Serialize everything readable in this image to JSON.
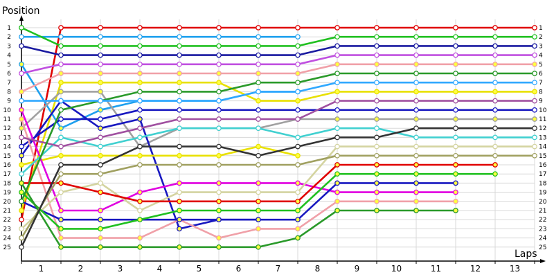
{
  "chart_data": {
    "type": "line",
    "ylabel": "Position",
    "xlabel": "Laps",
    "x_ticks": [
      "1",
      "2",
      "3",
      "4",
      "5",
      "6",
      "7",
      "8",
      "9",
      "10",
      "11",
      "12",
      "13"
    ],
    "y_ticks": [
      "1",
      "2",
      "3",
      "4",
      "5",
      "6",
      "7",
      "8",
      "9",
      "10",
      "11",
      "12",
      "13",
      "14",
      "15",
      "16",
      "17",
      "18",
      "19",
      "20",
      "21",
      "22",
      "23",
      "24",
      "25"
    ],
    "right_ticks": [
      "1",
      "2",
      "3",
      "4",
      "5",
      "6",
      "7",
      "8",
      "9",
      "10",
      "11",
      "12",
      "13",
      "14",
      "15",
      "16",
      "17",
      "18",
      "19",
      "20",
      "21",
      "22",
      "23",
      "24",
      "25"
    ],
    "ylim": [
      25,
      1
    ],
    "y_reversed": true,
    "x_positions": [
      0,
      1,
      2,
      3,
      4,
      5,
      6,
      7,
      8,
      9,
      10,
      11,
      12,
      13
    ],
    "grid": true,
    "series": [
      {
        "color": "#e00000",
        "dot": "#ffffff",
        "values": [
          22,
          1,
          1,
          1,
          1,
          1,
          1,
          1,
          1,
          1,
          1,
          1,
          1,
          1
        ]
      },
      {
        "color": "#1ea0ee",
        "dot": "#ffff40",
        "values": [
          5,
          12,
          10,
          9,
          9,
          9,
          8,
          8,
          null,
          null,
          null,
          null,
          null,
          null
        ]
      },
      {
        "color": "#f0a0a8",
        "dot": "#ffff40",
        "values": [
          8,
          6,
          6,
          6,
          6,
          6,
          6,
          6,
          5,
          5,
          5,
          5,
          5,
          5
        ]
      },
      {
        "color": "#e8e000",
        "dot": "#ffff40",
        "values": [
          21,
          7,
          7,
          7,
          7,
          7,
          9,
          9,
          8,
          8,
          8,
          8,
          8,
          8
        ]
      },
      {
        "color": "#a0a0a0",
        "dot": "#ffff40",
        "values": [
          12,
          8,
          8,
          14,
          12,
          12,
          12,
          11,
          11,
          11,
          11,
          11,
          11,
          11
        ]
      },
      {
        "color": "#1818c0",
        "dot": "#ffff40",
        "values": [
          15,
          9,
          12,
          11,
          23,
          22,
          22,
          null,
          null,
          null,
          null,
          null,
          null,
          null
        ]
      },
      {
        "color": "#1818c0",
        "dot": "#ffffff",
        "values": [
          14,
          11,
          11,
          10,
          10,
          10,
          10,
          10,
          10,
          10,
          10,
          10,
          10,
          10
        ]
      },
      {
        "color": "#1ea0ee",
        "dot": "#ffffff",
        "values": [
          2,
          2,
          2,
          2,
          2,
          2,
          2,
          2,
          null,
          null,
          null,
          null,
          null,
          null
        ]
      },
      {
        "color": "#1a1aa0",
        "dot": "#ffffff",
        "values": [
          3,
          4,
          4,
          4,
          4,
          4,
          4,
          4,
          3,
          3,
          3,
          3,
          3,
          3
        ]
      },
      {
        "color": "#e8e000",
        "dot": "#ffff40",
        "values": [
          16,
          15,
          15,
          15,
          15,
          15,
          14,
          15,
          null,
          null,
          null,
          null,
          null,
          null
        ]
      },
      {
        "color": "#e000e0",
        "dot": "#ffff40",
        "values": [
          10,
          21,
          21,
          19,
          18,
          18,
          18,
          18,
          19,
          19,
          19,
          19,
          null,
          null
        ]
      },
      {
        "color": "#f0a0a8",
        "dot": "#ffff40",
        "values": [
          11,
          24,
          24,
          24,
          22,
          24,
          23,
          23,
          20,
          20,
          20,
          20,
          null,
          null
        ]
      },
      {
        "color": "#d4d4a0",
        "dot": "#ffffff",
        "values": [
          23,
          19,
          18,
          21,
          19,
          19,
          19,
          19,
          14,
          14,
          14,
          14,
          14,
          14
        ]
      },
      {
        "color": "#e00000",
        "dot": "#ffff40",
        "values": [
          18,
          18,
          19,
          20,
          20,
          20,
          20,
          20,
          16,
          16,
          16,
          16,
          16,
          null
        ]
      },
      {
        "color": "#1818c0",
        "dot": "#ffff40",
        "values": [
          20,
          22,
          22,
          22,
          22,
          22,
          22,
          22,
          18,
          18,
          18,
          18,
          null,
          null
        ]
      },
      {
        "color": "#20c020",
        "dot": "#ffff40",
        "values": [
          19,
          23,
          23,
          22,
          21,
          21,
          21,
          21,
          17,
          17,
          17,
          17,
          17,
          null
        ]
      },
      {
        "color": "#20c020",
        "dot": "#ffffff",
        "values": [
          1,
          3,
          3,
          3,
          3,
          3,
          3,
          3,
          2,
          2,
          2,
          2,
          2,
          2
        ]
      },
      {
        "color": "#40d0d0",
        "dot": "#ffffff",
        "values": [
          17,
          13,
          14,
          13,
          12,
          12,
          12,
          13,
          12,
          12,
          13,
          13,
          13,
          13
        ]
      },
      {
        "color": "#a050a0",
        "dot": "#ffffff",
        "values": [
          13,
          14,
          13,
          12,
          11,
          11,
          11,
          11,
          9,
          9,
          9,
          9,
          9,
          9
        ]
      },
      {
        "color": "#c050e0",
        "dot": "#ffffff",
        "values": [
          6,
          5,
          5,
          5,
          5,
          5,
          5,
          5,
          4,
          4,
          4,
          4,
          4,
          4
        ]
      },
      {
        "color": "#2a9a2a",
        "dot": "#ffffff",
        "values": [
          20,
          10,
          9,
          8,
          8,
          8,
          7,
          7,
          6,
          6,
          6,
          6,
          6,
          6
        ]
      },
      {
        "color": "#2a9a2a",
        "dot": "#ffff40",
        "values": [
          18,
          25,
          25,
          25,
          25,
          25,
          25,
          24,
          21,
          21,
          21,
          21,
          null,
          null
        ]
      },
      {
        "color": "#30a8ff",
        "dot": "#ffffff",
        "values": [
          9,
          9,
          9,
          9,
          9,
          9,
          8,
          8,
          7,
          7,
          7,
          7,
          7,
          7
        ]
      },
      {
        "color": "#a0a060",
        "dot": "#ffffff",
        "values": [
          24,
          17,
          17,
          16,
          16,
          16,
          16,
          16,
          15,
          15,
          15,
          15,
          15,
          15
        ]
      },
      {
        "color": "#333333",
        "dot": "#ffffff",
        "values": [
          25,
          16,
          16,
          14,
          14,
          14,
          15,
          14,
          13,
          13,
          12,
          12,
          12,
          12
        ]
      }
    ]
  }
}
